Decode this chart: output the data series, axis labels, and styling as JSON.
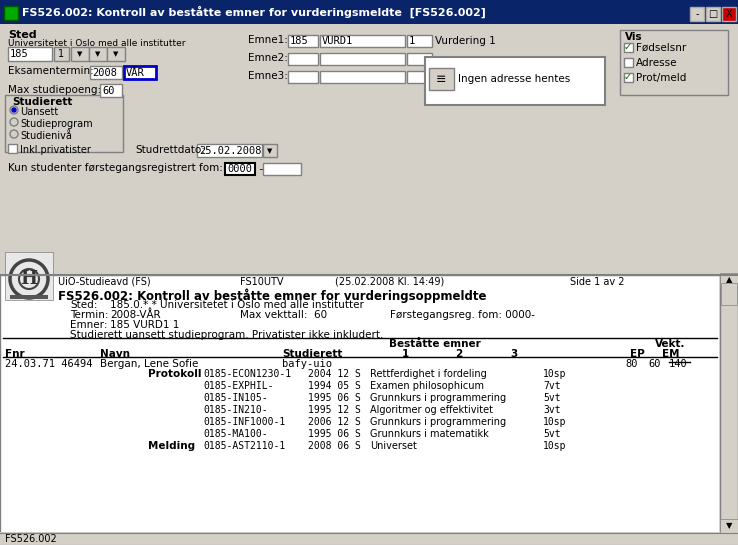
{
  "title_bar": "FS526.002: Kontroll av beståtte emner for vurderingsmeldte  [FS526.002]",
  "title_bar_color": "#0a246a",
  "title_bar_text_color": "#ffffff",
  "bg_color": "#d4d0c8",
  "white": "#ffffff",
  "black": "#000000",
  "header_section": {
    "sted_label": "Sted",
    "sted_sub": "Universitetet i Oslo med alle institutter",
    "sted_val": "185",
    "emne1_label": "Emne1:",
    "emne1_val1": "185",
    "emne1_val2": "VURD1",
    "emne1_val3": "1",
    "emne1_val4": "Vurdering 1",
    "emne2_label": "Emne2:",
    "emne3_label": "Emne3:",
    "eksamentermin_label": "Eksamentermin:",
    "eksamentermin_val1": "2008",
    "eksamentermin_val2": "VÅR",
    "max_label": "Max studiepoeng:",
    "max_val": "60",
    "studierett_label": "Studierett",
    "radio_options": [
      "Uansett",
      "Studieprogram",
      "Studienivå"
    ],
    "checkbox_label": "Inkl.privatister",
    "studrettdato_label": "Studrettdato:",
    "studrettdato_val": "25.02.2008",
    "ingen_adresse": "Ingen adresse hentes",
    "vis_label": "Vis",
    "vis_checks": [
      "Fødselsnr",
      "Adresse",
      "Prot/meld"
    ],
    "vis_checked": [
      true,
      false,
      true
    ],
    "kun_label": "Kun studenter førstegangsregistrert fom:",
    "kun_val": "0000"
  },
  "report": {
    "uio_line": "UiO-Studieavd (FS)",
    "fs10utv": "FS10UTV",
    "date_time": "(25.02.2008 Kl. 14:49)",
    "side": "Side 1 av 2",
    "header_bold": "FS526.002: Kontroll av beståtte emner for vurderingsoppmeldte",
    "sted_report": "185.0.*.* Universitetet i Oslo med alle institutter",
    "termin_val": "2008-VÅR",
    "max_vekttall": "Max vekttall:  60",
    "forstegang": "Førstegangsreg. fom: 0000-",
    "emner_val": "185 VURD1 1",
    "studierett_line": "Studierett uansett studieprogram. Privatister ikke inkludert.",
    "bestatte_header": "Beståtte emner",
    "vekt_header": "Vekt.",
    "col_fnr": "Fnr",
    "col_navn": "Navn",
    "col_studierett": "Studierett",
    "col_1": "1",
    "col_2": "2",
    "col_3": "3",
    "col_ep": "EP",
    "col_em": "EM",
    "data_row": {
      "fnr": "24.03.71 46494",
      "navn": "Bergan, Lene Sofie",
      "studierett": "bafy-uio",
      "ep": "80",
      "em": "60",
      "em_underline": "140"
    },
    "protokoll_rows": [
      {
        "kode": "0185-ECON1230-1",
        "termin": "2004 12 S",
        "beskrivelse": "Rettferdighet i fordeling",
        "vekt": "10sp"
      },
      {
        "kode": "0185-EXPHIL-",
        "termin": "1994 05 S",
        "beskrivelse": "Examen philosophicum",
        "vekt": "7vt"
      },
      {
        "kode": "0185-IN105-",
        "termin": "1995 06 S",
        "beskrivelse": "Grunnkurs i programmering",
        "vekt": "5vt"
      },
      {
        "kode": "0185-IN210-",
        "termin": "1995 12 S",
        "beskrivelse": "Algoritmer og effektivitet",
        "vekt": "3vt"
      },
      {
        "kode": "0185-INF1000-1",
        "termin": "2006 12 S",
        "beskrivelse": "Grunnkurs i programmering",
        "vekt": "10sp"
      },
      {
        "kode": "0185-MA100-",
        "termin": "1995 06 S",
        "beskrivelse": "Grunnkurs i matematikk",
        "vekt": "5vt"
      }
    ],
    "melding_row": {
      "kode": "0185-AST2110-1",
      "termin": "2008 06 S",
      "beskrivelse": "Universet",
      "vekt": "10sp"
    },
    "status_bar": "FS526.002"
  }
}
